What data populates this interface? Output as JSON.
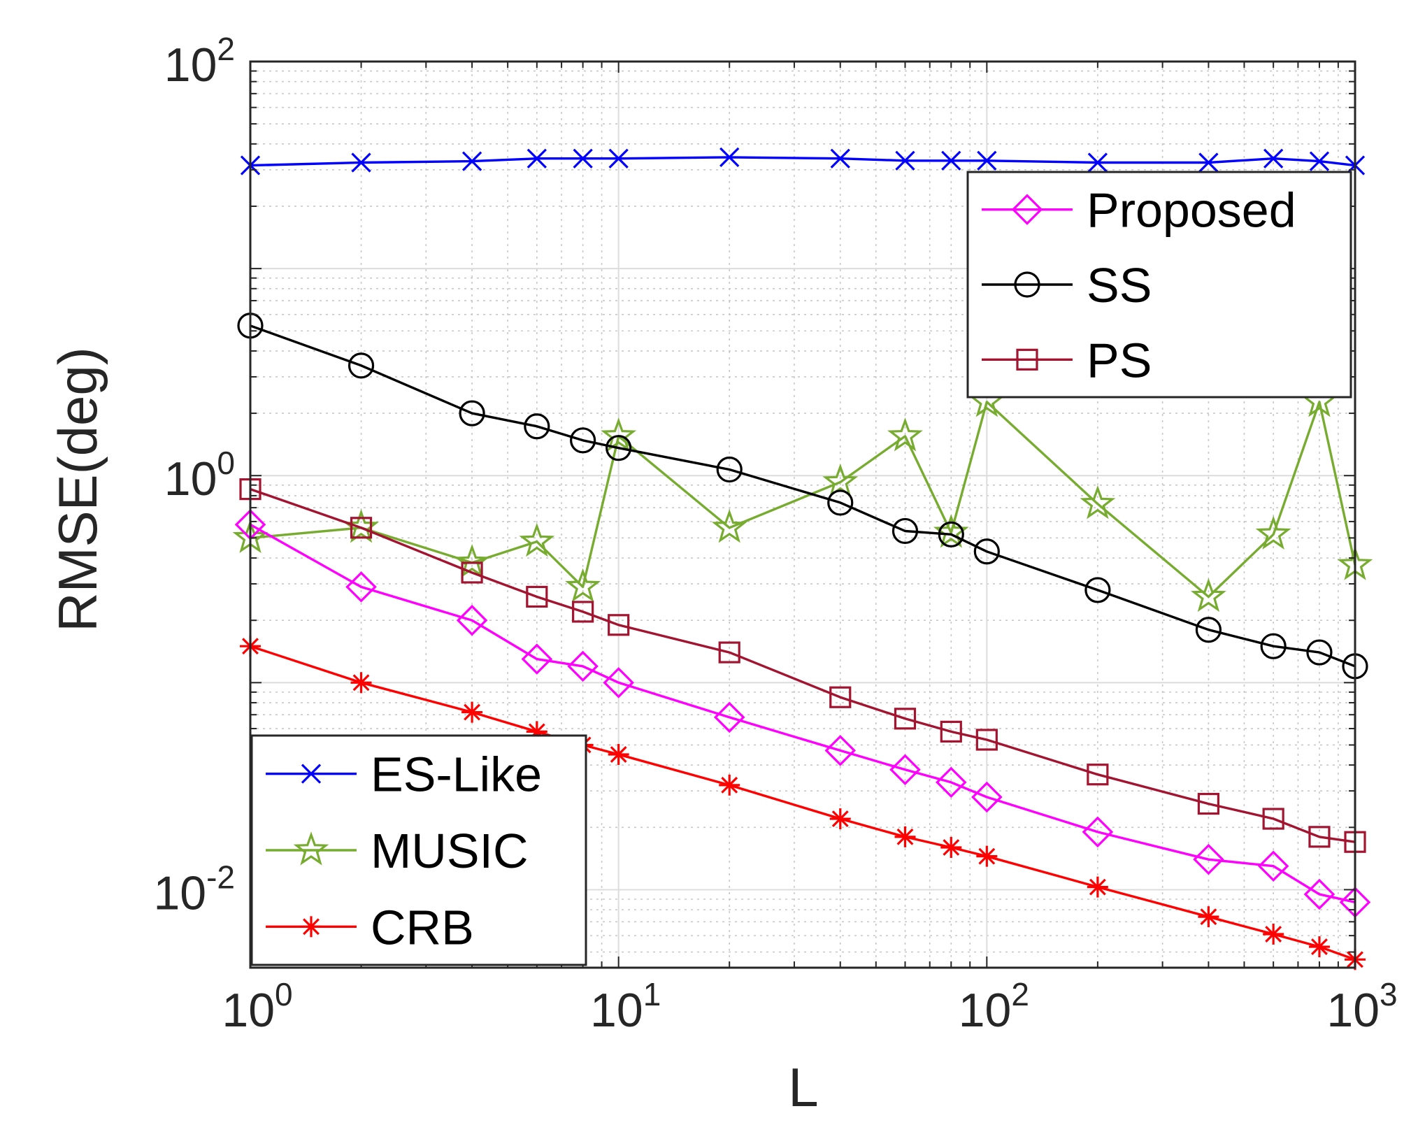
{
  "chart_data": {
    "type": "line",
    "xscale": "log",
    "yscale": "log",
    "xlabel": "L",
    "ylabel": "RMSE(deg)",
    "xlim": [
      1,
      1000
    ],
    "ylim": [
      0.0042,
      100
    ],
    "x_ticks": [
      {
        "value": 1,
        "base": "10",
        "exp": "0"
      },
      {
        "value": 10,
        "base": "10",
        "exp": "1"
      },
      {
        "value": 100,
        "base": "10",
        "exp": "2"
      },
      {
        "value": 1000,
        "base": "10",
        "exp": "3"
      }
    ],
    "y_ticks": [
      {
        "value": 0.01,
        "base": "10",
        "exp": "-2"
      },
      {
        "value": 1,
        "base": "10",
        "exp": "0"
      },
      {
        "value": 100,
        "base": "10",
        "exp": "2"
      }
    ],
    "grid": true,
    "series": [
      {
        "name": "ES-Like",
        "color": "#0000ff",
        "marker": "x",
        "x": [
          1,
          2,
          4,
          6,
          8,
          10,
          20,
          40,
          60,
          80,
          100,
          200,
          400,
          600,
          800,
          1000
        ],
        "y": [
          31.5,
          32.5,
          33,
          34,
          34,
          34,
          34.5,
          34,
          33.2,
          33.2,
          33.2,
          32.5,
          32.5,
          34,
          33,
          31.5
        ]
      },
      {
        "name": "MUSIC",
        "color": "#77ac30",
        "marker": "pentagram",
        "x": [
          1,
          2,
          4,
          6,
          8,
          10,
          20,
          40,
          60,
          80,
          100,
          200,
          400,
          600,
          800,
          1000
        ],
        "y": [
          0.5,
          0.56,
          0.38,
          0.48,
          0.29,
          1.55,
          0.56,
          0.93,
          1.55,
          0.53,
          2.27,
          0.73,
          0.26,
          0.52,
          2.27,
          0.37
        ]
      },
      {
        "name": "Proposed",
        "color": "#ff00ff",
        "marker": "diamond",
        "x": [
          1,
          2,
          4,
          6,
          8,
          10,
          20,
          40,
          60,
          80,
          100,
          200,
          400,
          600,
          800,
          1000
        ],
        "y": [
          0.58,
          0.29,
          0.2,
          0.13,
          0.12,
          0.1,
          0.068,
          0.047,
          0.038,
          0.033,
          0.028,
          0.019,
          0.014,
          0.013,
          0.0095,
          0.0087
        ]
      },
      {
        "name": "SS",
        "color": "#000000",
        "marker": "circle",
        "x": [
          1,
          2,
          4,
          6,
          8,
          10,
          20,
          40,
          60,
          80,
          100,
          200,
          400,
          600,
          800,
          1000
        ],
        "y": [
          5.3,
          3.4,
          2.0,
          1.73,
          1.48,
          1.36,
          1.07,
          0.74,
          0.54,
          0.52,
          0.43,
          0.28,
          0.18,
          0.15,
          0.14,
          0.12
        ]
      },
      {
        "name": "PS",
        "color": "#a2142f",
        "marker": "square",
        "x": [
          1,
          2,
          4,
          6,
          8,
          10,
          20,
          40,
          60,
          80,
          100,
          200,
          400,
          600,
          800,
          1000
        ],
        "y": [
          0.86,
          0.56,
          0.34,
          0.26,
          0.22,
          0.19,
          0.14,
          0.085,
          0.067,
          0.058,
          0.053,
          0.036,
          0.026,
          0.022,
          0.018,
          0.017
        ]
      },
      {
        "name": "CRB",
        "color": "#ff0000",
        "marker": "asterisk",
        "x": [
          1,
          2,
          4,
          6,
          8,
          10,
          20,
          40,
          60,
          80,
          100,
          200,
          400,
          600,
          800,
          1000
        ],
        "y": [
          0.15,
          0.1,
          0.072,
          0.058,
          0.05,
          0.045,
          0.032,
          0.022,
          0.018,
          0.016,
          0.0145,
          0.0103,
          0.0074,
          0.0061,
          0.0053,
          0.0046
        ]
      }
    ],
    "legends": [
      {
        "position": "top-right",
        "entries": [
          "Proposed",
          "SS",
          "PS"
        ]
      },
      {
        "position": "bottom-left",
        "entries": [
          "ES-Like",
          "MUSIC",
          "CRB"
        ]
      }
    ]
  }
}
